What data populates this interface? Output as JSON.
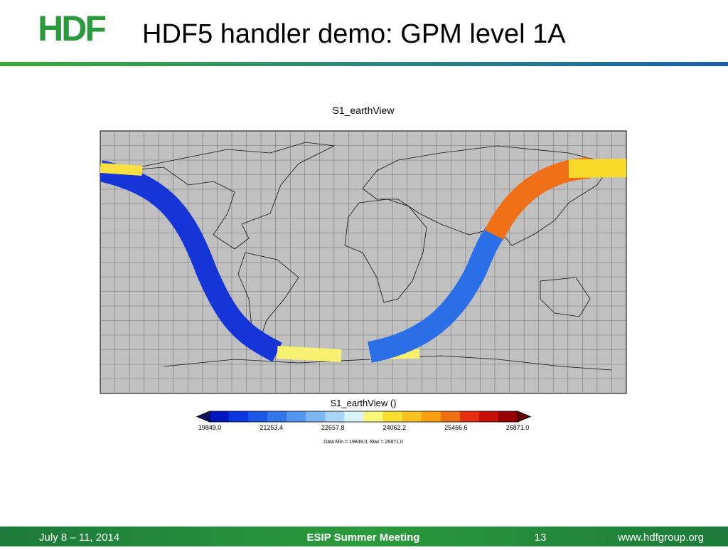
{
  "header": {
    "logo": "HDF",
    "title": "HDF5 handler demo: GPM level 1A"
  },
  "figure": {
    "title": "S1_earthView",
    "colorbar": {
      "title": "S1_earthView ()",
      "labels": [
        "19849.0",
        "21253.4",
        "22657.8",
        "24062.2",
        "25466.6",
        "26871.0"
      ],
      "colors": [
        "#0018c0",
        "#0a38e0",
        "#1c58e8",
        "#3478ec",
        "#5296f0",
        "#7cb6f4",
        "#a8d6f8",
        "#d8f4f8",
        "#f8f878",
        "#f8e030",
        "#f8c020",
        "#f8a010",
        "#f07010",
        "#e83010",
        "#c81008",
        "#980000"
      ],
      "note": "Data Min = 19849.0, Max = 26871.0"
    }
  },
  "footer": {
    "date": "July 8 – 11, 2014",
    "event": "ESIP Summer Meeting",
    "page": "13",
    "url": "www.hdfgroup.org"
  }
}
